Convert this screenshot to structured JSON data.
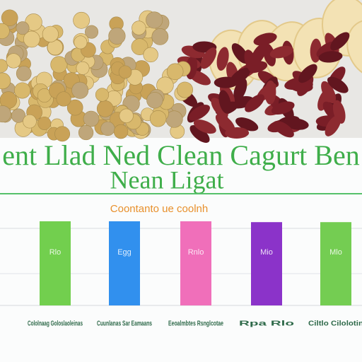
{
  "chart_data": {
    "type": "bar",
    "title": "ent Llad Ned Clean Cagurt Ben",
    "subtitle": "Nean Ligat",
    "annotation": "Coontanto ue coolnh",
    "categories": [
      "Cololnaag Goloslaoleinas",
      "Cuunlanas Sar Eamaans",
      "Eeoalmbtes Rsnglcotae",
      "Rpa Rlo",
      "Ciltlo Cilolotin"
    ],
    "bar_labels": [
      "Rlo",
      "Egg",
      "Rnlo",
      "Mio",
      "Mlo"
    ],
    "values": [
      100,
      100,
      100,
      99,
      99
    ],
    "colors": [
      "#72cf4e",
      "#3190ee",
      "#f06fba",
      "#8b33c9",
      "#74cd52"
    ],
    "ylim": [
      0,
      100
    ]
  }
}
